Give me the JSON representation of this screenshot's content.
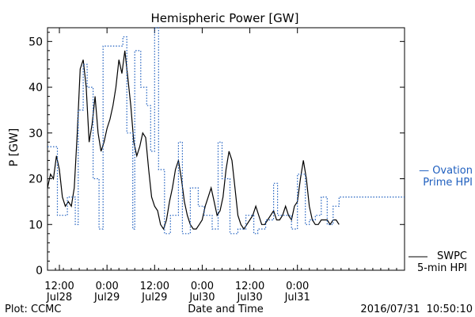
{
  "chart_data": {
    "type": "line",
    "title": "Hemispheric Power [GW]",
    "ylabel": "P [GW]",
    "xlabel": "Date and Time",
    "ylim": [
      0,
      53
    ],
    "yticks": [
      0,
      10,
      20,
      30,
      40,
      50
    ],
    "xlim": [
      "2016-07-28 09:00",
      "2016-08-01 03:00"
    ],
    "xticks": [
      {
        "time": "2016-07-28 12:00",
        "top": "12:00",
        "bottom": "Jul28"
      },
      {
        "time": "2016-07-29 00:00",
        "top": "0:00",
        "bottom": "Jul29"
      },
      {
        "time": "2016-07-29 12:00",
        "top": "12:00",
        "bottom": "Jul29"
      },
      {
        "time": "2016-07-30 00:00",
        "top": "0:00",
        "bottom": "Jul30"
      },
      {
        "time": "2016-07-30 12:00",
        "top": "12:00",
        "bottom": "Jul30"
      },
      {
        "time": "2016-07-31 00:00",
        "top": "0:00",
        "bottom": "Jul31"
      }
    ],
    "grid": false,
    "series": [
      {
        "name": "SWPC 5-min HPI",
        "style": "solid",
        "color": "#000000",
        "x": [
          "2016-07-28 09:00",
          "2016-07-28 09:45",
          "2016-07-28 10:30",
          "2016-07-28 11:15",
          "2016-07-28 12:00",
          "2016-07-28 12:45",
          "2016-07-28 13:30",
          "2016-07-28 14:15",
          "2016-07-28 15:00",
          "2016-07-28 15:45",
          "2016-07-28 16:30",
          "2016-07-28 17:15",
          "2016-07-28 18:00",
          "2016-07-28 18:45",
          "2016-07-28 19:30",
          "2016-07-28 20:15",
          "2016-07-28 21:00",
          "2016-07-28 21:45",
          "2016-07-28 22:30",
          "2016-07-28 23:15",
          "2016-07-29 00:00",
          "2016-07-29 00:45",
          "2016-07-29 01:30",
          "2016-07-29 02:15",
          "2016-07-29 03:00",
          "2016-07-29 03:45",
          "2016-07-29 04:30",
          "2016-07-29 05:15",
          "2016-07-29 06:00",
          "2016-07-29 06:45",
          "2016-07-29 07:30",
          "2016-07-29 08:15",
          "2016-07-29 09:00",
          "2016-07-29 09:45",
          "2016-07-29 10:30",
          "2016-07-29 11:15",
          "2016-07-29 12:00",
          "2016-07-29 12:45",
          "2016-07-29 13:30",
          "2016-07-29 14:15",
          "2016-07-29 15:00",
          "2016-07-29 15:45",
          "2016-07-29 16:30",
          "2016-07-29 17:15",
          "2016-07-29 18:00",
          "2016-07-29 18:45",
          "2016-07-29 19:30",
          "2016-07-29 20:15",
          "2016-07-29 21:00",
          "2016-07-29 21:45",
          "2016-07-29 22:30",
          "2016-07-29 23:15",
          "2016-07-30 00:00",
          "2016-07-30 00:45",
          "2016-07-30 01:30",
          "2016-07-30 02:15",
          "2016-07-30 03:00",
          "2016-07-30 03:45",
          "2016-07-30 04:30",
          "2016-07-30 05:15",
          "2016-07-30 06:00",
          "2016-07-30 06:45",
          "2016-07-30 07:30",
          "2016-07-30 08:15",
          "2016-07-30 09:00",
          "2016-07-30 09:45",
          "2016-07-30 10:30",
          "2016-07-30 11:15",
          "2016-07-30 12:00",
          "2016-07-30 12:45",
          "2016-07-30 13:30",
          "2016-07-30 14:15",
          "2016-07-30 15:00",
          "2016-07-30 15:45",
          "2016-07-30 16:30",
          "2016-07-30 17:15",
          "2016-07-30 18:00",
          "2016-07-30 18:45",
          "2016-07-30 19:30",
          "2016-07-30 20:15",
          "2016-07-30 21:00",
          "2016-07-30 21:45",
          "2016-07-30 22:30",
          "2016-07-30 23:15",
          "2016-07-31 00:00",
          "2016-07-31 00:45",
          "2016-07-31 01:30",
          "2016-07-31 02:15",
          "2016-07-31 03:00",
          "2016-07-31 03:45",
          "2016-07-31 04:30",
          "2016-07-31 05:15",
          "2016-07-31 06:00",
          "2016-07-31 06:45",
          "2016-07-31 07:30",
          "2016-07-31 08:15",
          "2016-07-31 09:00",
          "2016-07-31 09:45",
          "2016-07-31 10:30"
        ],
        "y": [
          18,
          21,
          20,
          25,
          22,
          16,
          14,
          15,
          14,
          18,
          30,
          44,
          46,
          40,
          28,
          32,
          38,
          30,
          26,
          28,
          31,
          33,
          36,
          40,
          46,
          43,
          48,
          42,
          36,
          28,
          25,
          27,
          30,
          29,
          22,
          16,
          14,
          13,
          10,
          9,
          11,
          15,
          18,
          22,
          24,
          20,
          15,
          12,
          10,
          9,
          9,
          10,
          11,
          14,
          16,
          18,
          15,
          12,
          13,
          16,
          22,
          26,
          24,
          18,
          12,
          10,
          9,
          10,
          11,
          12,
          14,
          12,
          10,
          10,
          11,
          12,
          13,
          11,
          11,
          12,
          14,
          12,
          11,
          14,
          15,
          20,
          24,
          20,
          14,
          11,
          10,
          10,
          11,
          11,
          11,
          10,
          11,
          11,
          10
        ]
      },
      {
        "name": "Ovation Prime HPI",
        "style": "dotted",
        "color": "#1f5fbf",
        "x": [
          "2016-07-28 09:00",
          "2016-07-28 11:30",
          "2016-07-28 14:00",
          "2016-07-28 16:00",
          "2016-07-28 16:45",
          "2016-07-28 18:00",
          "2016-07-28 19:00",
          "2016-07-28 20:30",
          "2016-07-28 22:00",
          "2016-07-28 23:00",
          "2016-07-29 01:00",
          "2016-07-29 04:00",
          "2016-07-29 05:00",
          "2016-07-29 06:30",
          "2016-07-29 07:00",
          "2016-07-29 08:30",
          "2016-07-29 10:00",
          "2016-07-29 11:00",
          "2016-07-29 12:00",
          "2016-07-29 13:00",
          "2016-07-29 14:30",
          "2016-07-29 16:00",
          "2016-07-29 18:00",
          "2016-07-29 19:00",
          "2016-07-29 21:00",
          "2016-07-29 23:00",
          "2016-07-30 00:30",
          "2016-07-30 02:30",
          "2016-07-30 04:00",
          "2016-07-30 05:00",
          "2016-07-30 07:00",
          "2016-07-30 09:00",
          "2016-07-30 11:00",
          "2016-07-30 13:00",
          "2016-07-30 14:00",
          "2016-07-30 16:00",
          "2016-07-30 18:00",
          "2016-07-30 19:00",
          "2016-07-30 21:00",
          "2016-07-30 22:30",
          "2016-07-31 00:00",
          "2016-07-31 02:00",
          "2016-07-31 03:00",
          "2016-07-31 04:30",
          "2016-07-31 06:00",
          "2016-07-31 07:30",
          "2016-07-31 09:00",
          "2016-07-31 10:30"
        ],
        "y": [
          27,
          12,
          16,
          10,
          35,
          45,
          40,
          20,
          9,
          49,
          49,
          51,
          30,
          9,
          48,
          40,
          36,
          26,
          53,
          22,
          8,
          12,
          28,
          8,
          18,
          14,
          12,
          9,
          28,
          20,
          8,
          9,
          12,
          8,
          9,
          11,
          19,
          12,
          12,
          9,
          21,
          10,
          11,
          12,
          16,
          10,
          14,
          16
        ]
      }
    ],
    "legend": [
      {
        "lines": [
          "— Ovation",
          "Prime HPI"
        ],
        "color": "#1f5fbf",
        "placement": "right-middle"
      },
      {
        "lines": [
          "SWPC",
          "5-min HPI"
        ],
        "color": "#000000",
        "placement": "right-bottom"
      }
    ],
    "annotations": {
      "left": "Plot: CCMC",
      "right": "2016/07/31  10:50:10"
    }
  }
}
